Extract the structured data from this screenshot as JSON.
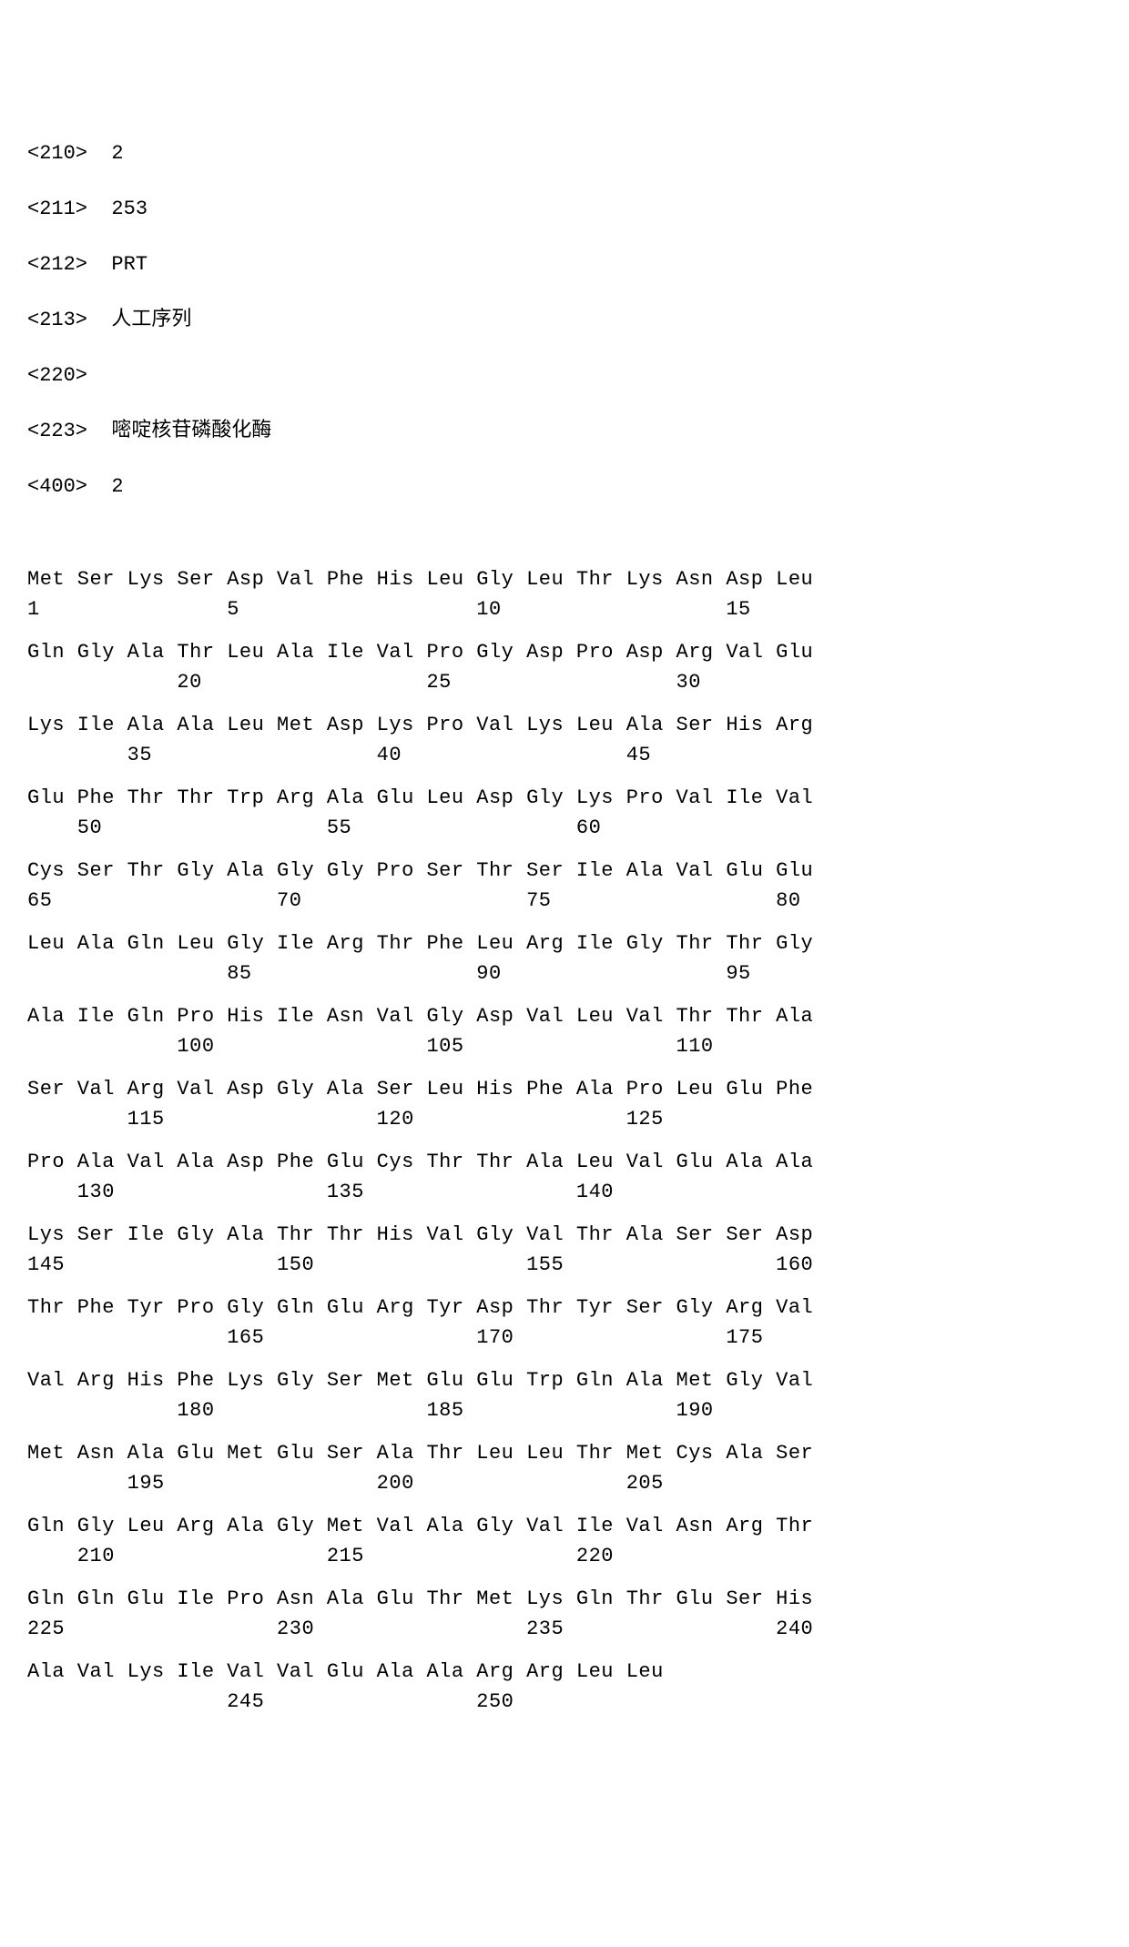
{
  "headers": [
    {
      "tag": "<210>",
      "val": "2"
    },
    {
      "tag": "<211>",
      "val": "253"
    },
    {
      "tag": "<212>",
      "val": "PRT"
    },
    {
      "tag": "<213>",
      "val": "人工序列"
    },
    {
      "tag": "<220>",
      "val": ""
    },
    {
      "tag": "<223>",
      "val": "嘧啶核苷磷酸化酶"
    },
    {
      "tag": "<400>",
      "val": "2"
    }
  ],
  "sequence": {
    "aa_width": 4,
    "residues": [
      "Met",
      "Ser",
      "Lys",
      "Ser",
      "Asp",
      "Val",
      "Phe",
      "His",
      "Leu",
      "Gly",
      "Leu",
      "Thr",
      "Lys",
      "Asn",
      "Asp",
      "Leu",
      "Gln",
      "Gly",
      "Ala",
      "Thr",
      "Leu",
      "Ala",
      "Ile",
      "Val",
      "Pro",
      "Gly",
      "Asp",
      "Pro",
      "Asp",
      "Arg",
      "Val",
      "Glu",
      "Lys",
      "Ile",
      "Ala",
      "Ala",
      "Leu",
      "Met",
      "Asp",
      "Lys",
      "Pro",
      "Val",
      "Lys",
      "Leu",
      "Ala",
      "Ser",
      "His",
      "Arg",
      "Glu",
      "Phe",
      "Thr",
      "Thr",
      "Trp",
      "Arg",
      "Ala",
      "Glu",
      "Leu",
      "Asp",
      "Gly",
      "Lys",
      "Pro",
      "Val",
      "Ile",
      "Val",
      "Cys",
      "Ser",
      "Thr",
      "Gly",
      "Ala",
      "Gly",
      "Gly",
      "Pro",
      "Ser",
      "Thr",
      "Ser",
      "Ile",
      "Ala",
      "Val",
      "Glu",
      "Glu",
      "Leu",
      "Ala",
      "Gln",
      "Leu",
      "Gly",
      "Ile",
      "Arg",
      "Thr",
      "Phe",
      "Leu",
      "Arg",
      "Ile",
      "Gly",
      "Thr",
      "Thr",
      "Gly",
      "Ala",
      "Ile",
      "Gln",
      "Pro",
      "His",
      "Ile",
      "Asn",
      "Val",
      "Gly",
      "Asp",
      "Val",
      "Leu",
      "Val",
      "Thr",
      "Thr",
      "Ala",
      "Ser",
      "Val",
      "Arg",
      "Val",
      "Asp",
      "Gly",
      "Ala",
      "Ser",
      "Leu",
      "His",
      "Phe",
      "Ala",
      "Pro",
      "Leu",
      "Glu",
      "Phe",
      "Pro",
      "Ala",
      "Val",
      "Ala",
      "Asp",
      "Phe",
      "Glu",
      "Cys",
      "Thr",
      "Thr",
      "Ala",
      "Leu",
      "Val",
      "Glu",
      "Ala",
      "Ala",
      "Lys",
      "Ser",
      "Ile",
      "Gly",
      "Ala",
      "Thr",
      "Thr",
      "His",
      "Val",
      "Gly",
      "Val",
      "Thr",
      "Ala",
      "Ser",
      "Ser",
      "Asp",
      "Thr",
      "Phe",
      "Tyr",
      "Pro",
      "Gly",
      "Gln",
      "Glu",
      "Arg",
      "Tyr",
      "Asp",
      "Thr",
      "Tyr",
      "Ser",
      "Gly",
      "Arg",
      "Val",
      "Val",
      "Arg",
      "His",
      "Phe",
      "Lys",
      "Gly",
      "Ser",
      "Met",
      "Glu",
      "Glu",
      "Trp",
      "Gln",
      "Ala",
      "Met",
      "Gly",
      "Val",
      "Met",
      "Asn",
      "Ala",
      "Glu",
      "Met",
      "Glu",
      "Ser",
      "Ala",
      "Thr",
      "Leu",
      "Leu",
      "Thr",
      "Met",
      "Cys",
      "Ala",
      "Ser",
      "Gln",
      "Gly",
      "Leu",
      "Arg",
      "Ala",
      "Gly",
      "Met",
      "Val",
      "Ala",
      "Gly",
      "Val",
      "Ile",
      "Val",
      "Asn",
      "Arg",
      "Thr",
      "Gln",
      "Gln",
      "Glu",
      "Ile",
      "Pro",
      "Asn",
      "Ala",
      "Glu",
      "Thr",
      "Met",
      "Lys",
      "Gln",
      "Thr",
      "Glu",
      "Ser",
      "His",
      "Ala",
      "Val",
      "Lys",
      "Ile",
      "Val",
      "Val",
      "Glu",
      "Ala",
      "Ala",
      "Arg",
      "Arg",
      "Leu",
      "Leu"
    ],
    "numbering_rows": [
      {
        "row": 0,
        "labels": [
          {
            "pos": 0,
            "n": 1
          },
          {
            "pos": 4,
            "n": 5
          },
          {
            "pos": 9,
            "n": 10
          },
          {
            "pos": 14,
            "n": 15
          }
        ]
      },
      {
        "row": 1,
        "labels": [
          {
            "pos": 3,
            "n": 20
          },
          {
            "pos": 8,
            "n": 25
          },
          {
            "pos": 13,
            "n": 30
          }
        ]
      },
      {
        "row": 2,
        "labels": [
          {
            "pos": 2,
            "n": 35
          },
          {
            "pos": 7,
            "n": 40
          },
          {
            "pos": 12,
            "n": 45
          }
        ]
      },
      {
        "row": 3,
        "labels": [
          {
            "pos": 1,
            "n": 50
          },
          {
            "pos": 6,
            "n": 55
          },
          {
            "pos": 11,
            "n": 60
          }
        ]
      },
      {
        "row": 4,
        "labels": [
          {
            "pos": 0,
            "n": 65
          },
          {
            "pos": 5,
            "n": 70
          },
          {
            "pos": 10,
            "n": 75
          },
          {
            "pos": 15,
            "n": 80
          }
        ]
      },
      {
        "row": 5,
        "labels": [
          {
            "pos": 4,
            "n": 85
          },
          {
            "pos": 9,
            "n": 90
          },
          {
            "pos": 14,
            "n": 95
          }
        ]
      },
      {
        "row": 6,
        "labels": [
          {
            "pos": 3,
            "n": 100
          },
          {
            "pos": 8,
            "n": 105
          },
          {
            "pos": 13,
            "n": 110
          }
        ]
      },
      {
        "row": 7,
        "labels": [
          {
            "pos": 2,
            "n": 115
          },
          {
            "pos": 7,
            "n": 120
          },
          {
            "pos": 12,
            "n": 125
          }
        ]
      },
      {
        "row": 8,
        "labels": [
          {
            "pos": 1,
            "n": 130
          },
          {
            "pos": 6,
            "n": 135
          },
          {
            "pos": 11,
            "n": 140
          }
        ]
      },
      {
        "row": 9,
        "labels": [
          {
            "pos": 0,
            "n": 145
          },
          {
            "pos": 5,
            "n": 150
          },
          {
            "pos": 10,
            "n": 155
          },
          {
            "pos": 15,
            "n": 160
          }
        ]
      },
      {
        "row": 10,
        "labels": [
          {
            "pos": 4,
            "n": 165
          },
          {
            "pos": 9,
            "n": 170
          },
          {
            "pos": 14,
            "n": 175
          }
        ]
      },
      {
        "row": 11,
        "labels": [
          {
            "pos": 3,
            "n": 180
          },
          {
            "pos": 8,
            "n": 185
          },
          {
            "pos": 13,
            "n": 190
          }
        ]
      },
      {
        "row": 12,
        "labels": [
          {
            "pos": 2,
            "n": 195
          },
          {
            "pos": 7,
            "n": 200
          },
          {
            "pos": 12,
            "n": 205
          }
        ]
      },
      {
        "row": 13,
        "labels": [
          {
            "pos": 1,
            "n": 210
          },
          {
            "pos": 6,
            "n": 215
          },
          {
            "pos": 11,
            "n": 220
          }
        ]
      },
      {
        "row": 14,
        "labels": [
          {
            "pos": 0,
            "n": 225
          },
          {
            "pos": 5,
            "n": 230
          },
          {
            "pos": 10,
            "n": 235
          },
          {
            "pos": 15,
            "n": 240
          }
        ]
      },
      {
        "row": 15,
        "labels": [
          {
            "pos": 4,
            "n": 245
          },
          {
            "pos": 9,
            "n": 250
          }
        ]
      }
    ]
  },
  "style": {
    "font_family": "Courier New",
    "font_size_pt": 16,
    "text_color": "#000000",
    "background_color": "#ffffff",
    "cols_per_row": 16,
    "cell_char_width": 4
  }
}
